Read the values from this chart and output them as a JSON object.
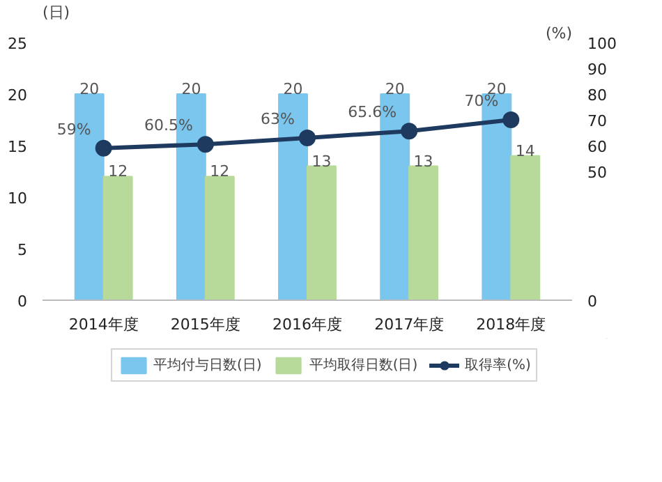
{
  "chart_data": {
    "type": "bar",
    "categories": [
      "2014年度",
      "2015年度",
      "2016年度",
      "2017年度",
      "2018年度"
    ],
    "ylabel": "(日)",
    "y2label": "(%)",
    "ylim": [
      0,
      25
    ],
    "yticks": [
      0,
      5,
      10,
      15,
      20,
      25
    ],
    "y2lim": [
      0,
      100
    ],
    "y2ticks": [
      0,
      50,
      60,
      70,
      80,
      90,
      100
    ],
    "series": [
      {
        "name": "平均付与日数(日)",
        "color": "#7ac6ee",
        "values": [
          20,
          20,
          20,
          20,
          20
        ]
      },
      {
        "name": "平均取得日数(日)",
        "color": "#b7da9a",
        "values": [
          12,
          12,
          13,
          13,
          14
        ]
      },
      {
        "name": "取得率(%)",
        "type": "line",
        "axis": "y2",
        "color": "#1f3a5f",
        "marker": "circle",
        "values": [
          59,
          60.5,
          63,
          65.6,
          70
        ],
        "value_labels": [
          "59%",
          "60.5%",
          "63%",
          "65.6%",
          "70%"
        ]
      }
    ],
    "data_labels": true,
    "legend": "bottom",
    "grid": false
  }
}
